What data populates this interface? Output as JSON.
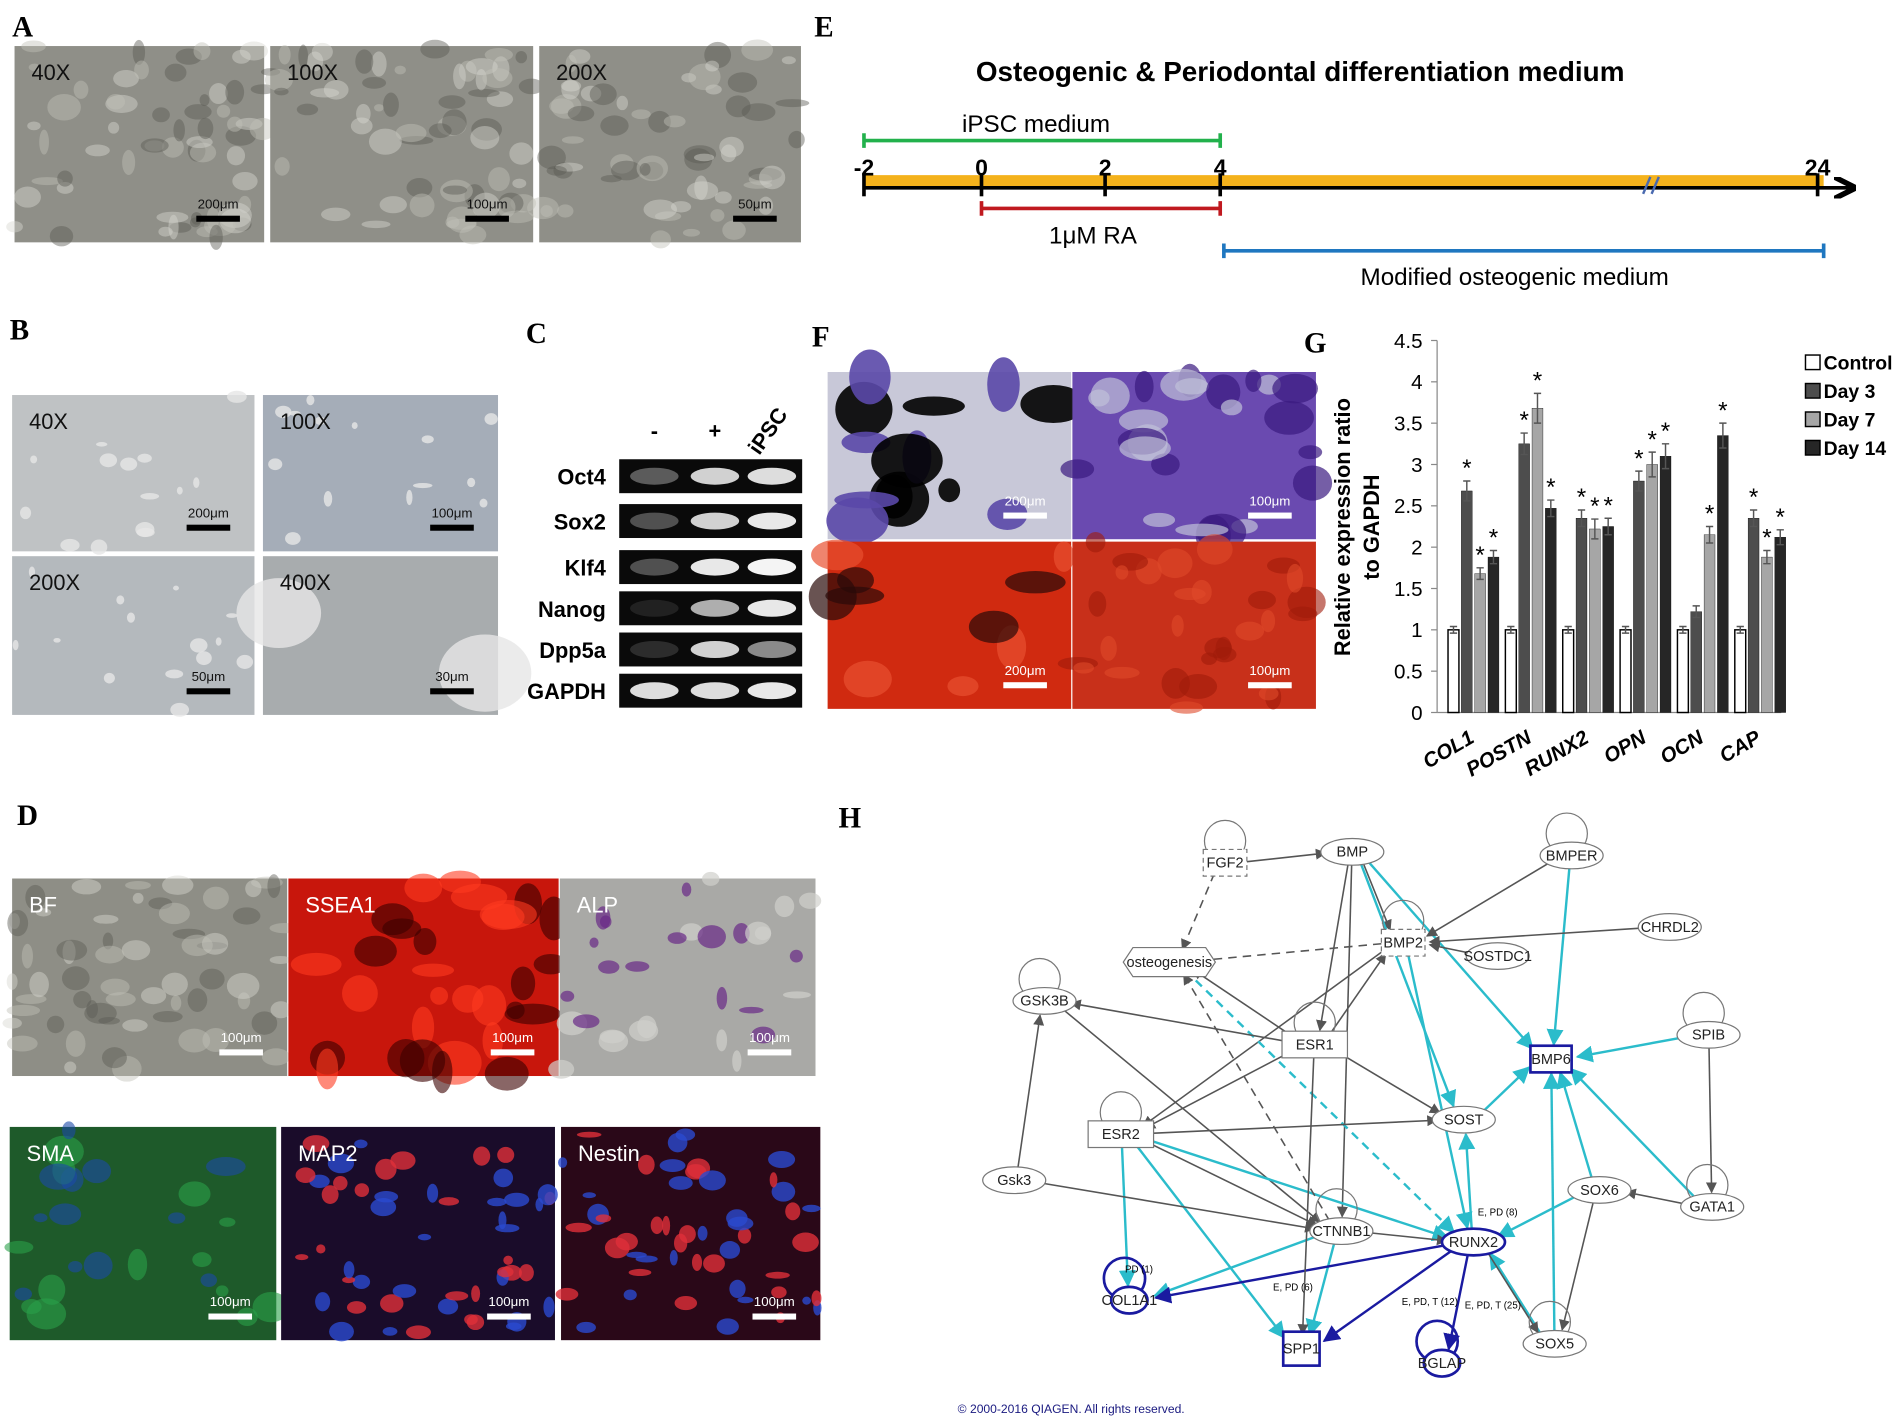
{
  "panel_A": {
    "label": "A",
    "images": [
      {
        "caption": "40X",
        "scale_bar": "200μm"
      },
      {
        "caption": "100X",
        "scale_bar": "100μm"
      },
      {
        "caption": "200X",
        "scale_bar": "50μm"
      }
    ]
  },
  "panel_B": {
    "label": "B",
    "images": [
      {
        "caption": "40X",
        "scale_bar": "200μm"
      },
      {
        "caption": "100X",
        "scale_bar": "100μm"
      },
      {
        "caption": "200X",
        "scale_bar": "50μm"
      },
      {
        "caption": "400X",
        "scale_bar": "30μm"
      }
    ]
  },
  "panel_C": {
    "label": "C",
    "lanes": [
      "-",
      "+",
      "iPSC"
    ],
    "genes": [
      "Oct4",
      "Sox2",
      "Klf4",
      "Nanog",
      "Dpp5a",
      "GAPDH"
    ]
  },
  "panel_D": {
    "label": "D",
    "images": [
      {
        "caption": "BF",
        "scale_bar": "100μm"
      },
      {
        "caption": "SSEA1",
        "scale_bar": "100μm"
      },
      {
        "caption": "ALP",
        "scale_bar": "100μm"
      },
      {
        "caption": "SMA",
        "scale_bar": "100μm"
      },
      {
        "caption": "MAP2",
        "scale_bar": "100μm"
      },
      {
        "caption": "Nestin",
        "scale_bar": "100μm"
      }
    ]
  },
  "panel_E": {
    "label": "E",
    "title": "Osteogenic & Periodontal  differentiation medium",
    "ticks": [
      -2,
      0,
      2,
      4,
      24
    ],
    "periods": [
      {
        "name": "iPSC medium",
        "color": "#22b14c"
      },
      {
        "name": "1μM RA",
        "color": "#c0191f"
      },
      {
        "name": "Modified osteogenic medium",
        "color": "#1f77c0"
      }
    ]
  },
  "panel_F": {
    "label": "F",
    "images": [
      {
        "scale_bar": "200μm"
      },
      {
        "scale_bar": "100μm"
      },
      {
        "scale_bar": "200μm"
      },
      {
        "scale_bar": "100μm"
      }
    ]
  },
  "chart_data": {
    "type": "bar",
    "panel_label": "G",
    "ylabel": [
      "Relative expression ratio",
      "to GAPDH"
    ],
    "categories": [
      "COL1",
      "POSTN",
      "RUNX2",
      "OPN",
      "OCN",
      "CAP"
    ],
    "series": [
      {
        "name": "Control",
        "color": "#ffffff",
        "values": [
          1,
          1,
          1,
          1,
          1,
          1
        ],
        "errors": [
          0.04,
          0.04,
          0.04,
          0.04,
          0.04,
          0.04
        ]
      },
      {
        "name": "Day 3",
        "color": "#4d4d4d",
        "values": [
          2.68,
          3.25,
          2.35,
          2.8,
          1.22,
          2.35
        ],
        "errors": [
          0.12,
          0.13,
          0.1,
          0.12,
          0.07,
          0.1
        ],
        "annotations": [
          "*",
          "*",
          "*",
          "*",
          null,
          "*"
        ]
      },
      {
        "name": "Day 7",
        "color": "#a6a6a6",
        "values": [
          1.68,
          3.68,
          2.22,
          3.0,
          2.15,
          1.88
        ],
        "errors": [
          0.07,
          0.18,
          0.12,
          0.15,
          0.1,
          0.08
        ],
        "annotations": [
          "*",
          "*",
          "*",
          "*",
          "*",
          "*"
        ]
      },
      {
        "name": "Day 14",
        "color": "#262626",
        "values": [
          1.88,
          2.47,
          2.25,
          3.1,
          3.35,
          2.12
        ],
        "errors": [
          0.08,
          0.1,
          0.1,
          0.15,
          0.15,
          0.09
        ],
        "annotations": [
          "*",
          "*",
          "*",
          "*",
          "*",
          "*"
        ]
      }
    ],
    "ylim": [
      0,
      4.5
    ],
    "yticks": [
      0,
      0.5,
      1,
      1.5,
      2,
      2.5,
      3,
      3.5,
      4,
      4.5
    ],
    "legend": "upper right"
  },
  "panel_H": {
    "label": "H",
    "nodes": [
      "FGF2",
      "BMP",
      "BMPER",
      "CHRDL2",
      "BMP2",
      "SOSTDC1",
      "osteogenesis",
      "GSK3B",
      "ESR1",
      "BMP6",
      "SPIB",
      "ESR2",
      "SOST",
      "Gsk3",
      "SOX6",
      "GATA1",
      "CTNNB1",
      "RUNX2",
      "COL1A1",
      "SPP1",
      "SOX5",
      "BGLAP"
    ],
    "edge_labels": [
      "E, PD (8)",
      "PD (1)",
      "E, PD (6)",
      "E, PD, T (12)",
      "E, PD, T (25)"
    ],
    "copyright": "© 2000-2016 QIAGEN. All rights reserved."
  }
}
